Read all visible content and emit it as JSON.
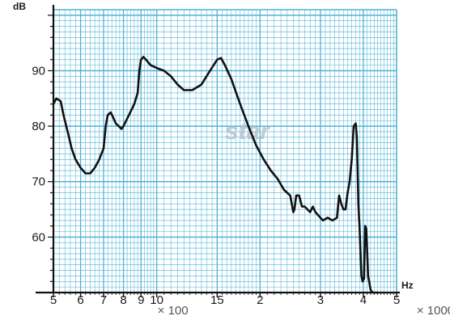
{
  "chart_data": {
    "type": "line",
    "title": "",
    "ylabel": "dB",
    "xlabel": "Hz",
    "x_scale": "log",
    "xlim": [
      500,
      5000
    ],
    "ylim": [
      50,
      101
    ],
    "x_ticks": [
      {
        "value": 500,
        "label": "5"
      },
      {
        "value": 600,
        "label": "6"
      },
      {
        "value": 700,
        "label": "7"
      },
      {
        "value": 800,
        "label": "8"
      },
      {
        "value": 900,
        "label": "9"
      },
      {
        "value": 1000,
        "label": "10"
      },
      {
        "value": 1500,
        "label": "15"
      },
      {
        "value": 2000,
        "label": "2"
      },
      {
        "value": 3000,
        "label": "3"
      },
      {
        "value": 4000,
        "label": "4"
      },
      {
        "value": 5000,
        "label": "5"
      }
    ],
    "x_multipliers": [
      {
        "at": 1000,
        "label": "× 100"
      },
      {
        "at": 5000,
        "label": "× 1000"
      }
    ],
    "y_ticks": [
      60,
      70,
      80,
      90
    ],
    "grid": true,
    "watermark": "star",
    "colors": {
      "background": "#ffffff",
      "grid": "#4fb3d6",
      "line": "#111111"
    },
    "series": [
      {
        "x": [
          500,
          510,
          525,
          535,
          540,
          550,
          565,
          580,
          600,
          620,
          640,
          660,
          680,
          700,
          710,
          720,
          735,
          760,
          790,
          800,
          830,
          860,
          880,
          890,
          900,
          915,
          930,
          960,
          1000,
          1050,
          1100,
          1150,
          1200,
          1270,
          1350,
          1430,
          1500,
          1540,
          1580,
          1650,
          1750,
          1850,
          1950,
          2050,
          2150,
          2250,
          2350,
          2450,
          2500,
          2520,
          2550,
          2600,
          2650,
          2700,
          2750,
          2800,
          2850,
          2900,
          2950,
          3000,
          3050,
          3150,
          3250,
          3350,
          3400,
          3450,
          3500,
          3550,
          3600,
          3650,
          3700,
          3750,
          3800,
          3830,
          3850,
          3870,
          3900,
          3920,
          3950,
          3980,
          4020,
          4050,
          4080,
          4100,
          4130,
          4160,
          4200,
          4250,
          4300,
          4350,
          4400
        ],
        "values": [
          84,
          85,
          84.5,
          82,
          81,
          79,
          76,
          74,
          72.5,
          71.5,
          71.5,
          72.5,
          74,
          76,
          80,
          82,
          82.5,
          80.5,
          79.5,
          80,
          82,
          84,
          86,
          90,
          92,
          92.5,
          92,
          91,
          90.5,
          90,
          89,
          87.5,
          86.5,
          86.5,
          87.5,
          90,
          92,
          92.3,
          91,
          88.5,
          84,
          80,
          76.5,
          74,
          72,
          70.5,
          68.5,
          67.5,
          64.5,
          65,
          67.5,
          67.5,
          65.5,
          65.5,
          65,
          64.5,
          65.5,
          64.5,
          64,
          63.5,
          63,
          63.5,
          63,
          63.5,
          67.5,
          66,
          65,
          65,
          68,
          70,
          74,
          80,
          80.5,
          78,
          72,
          66,
          62,
          58,
          53,
          52,
          52.5,
          62,
          61.5,
          58,
          53,
          52,
          50.5,
          50,
          49.5,
          49,
          48.5
        ]
      }
    ]
  }
}
